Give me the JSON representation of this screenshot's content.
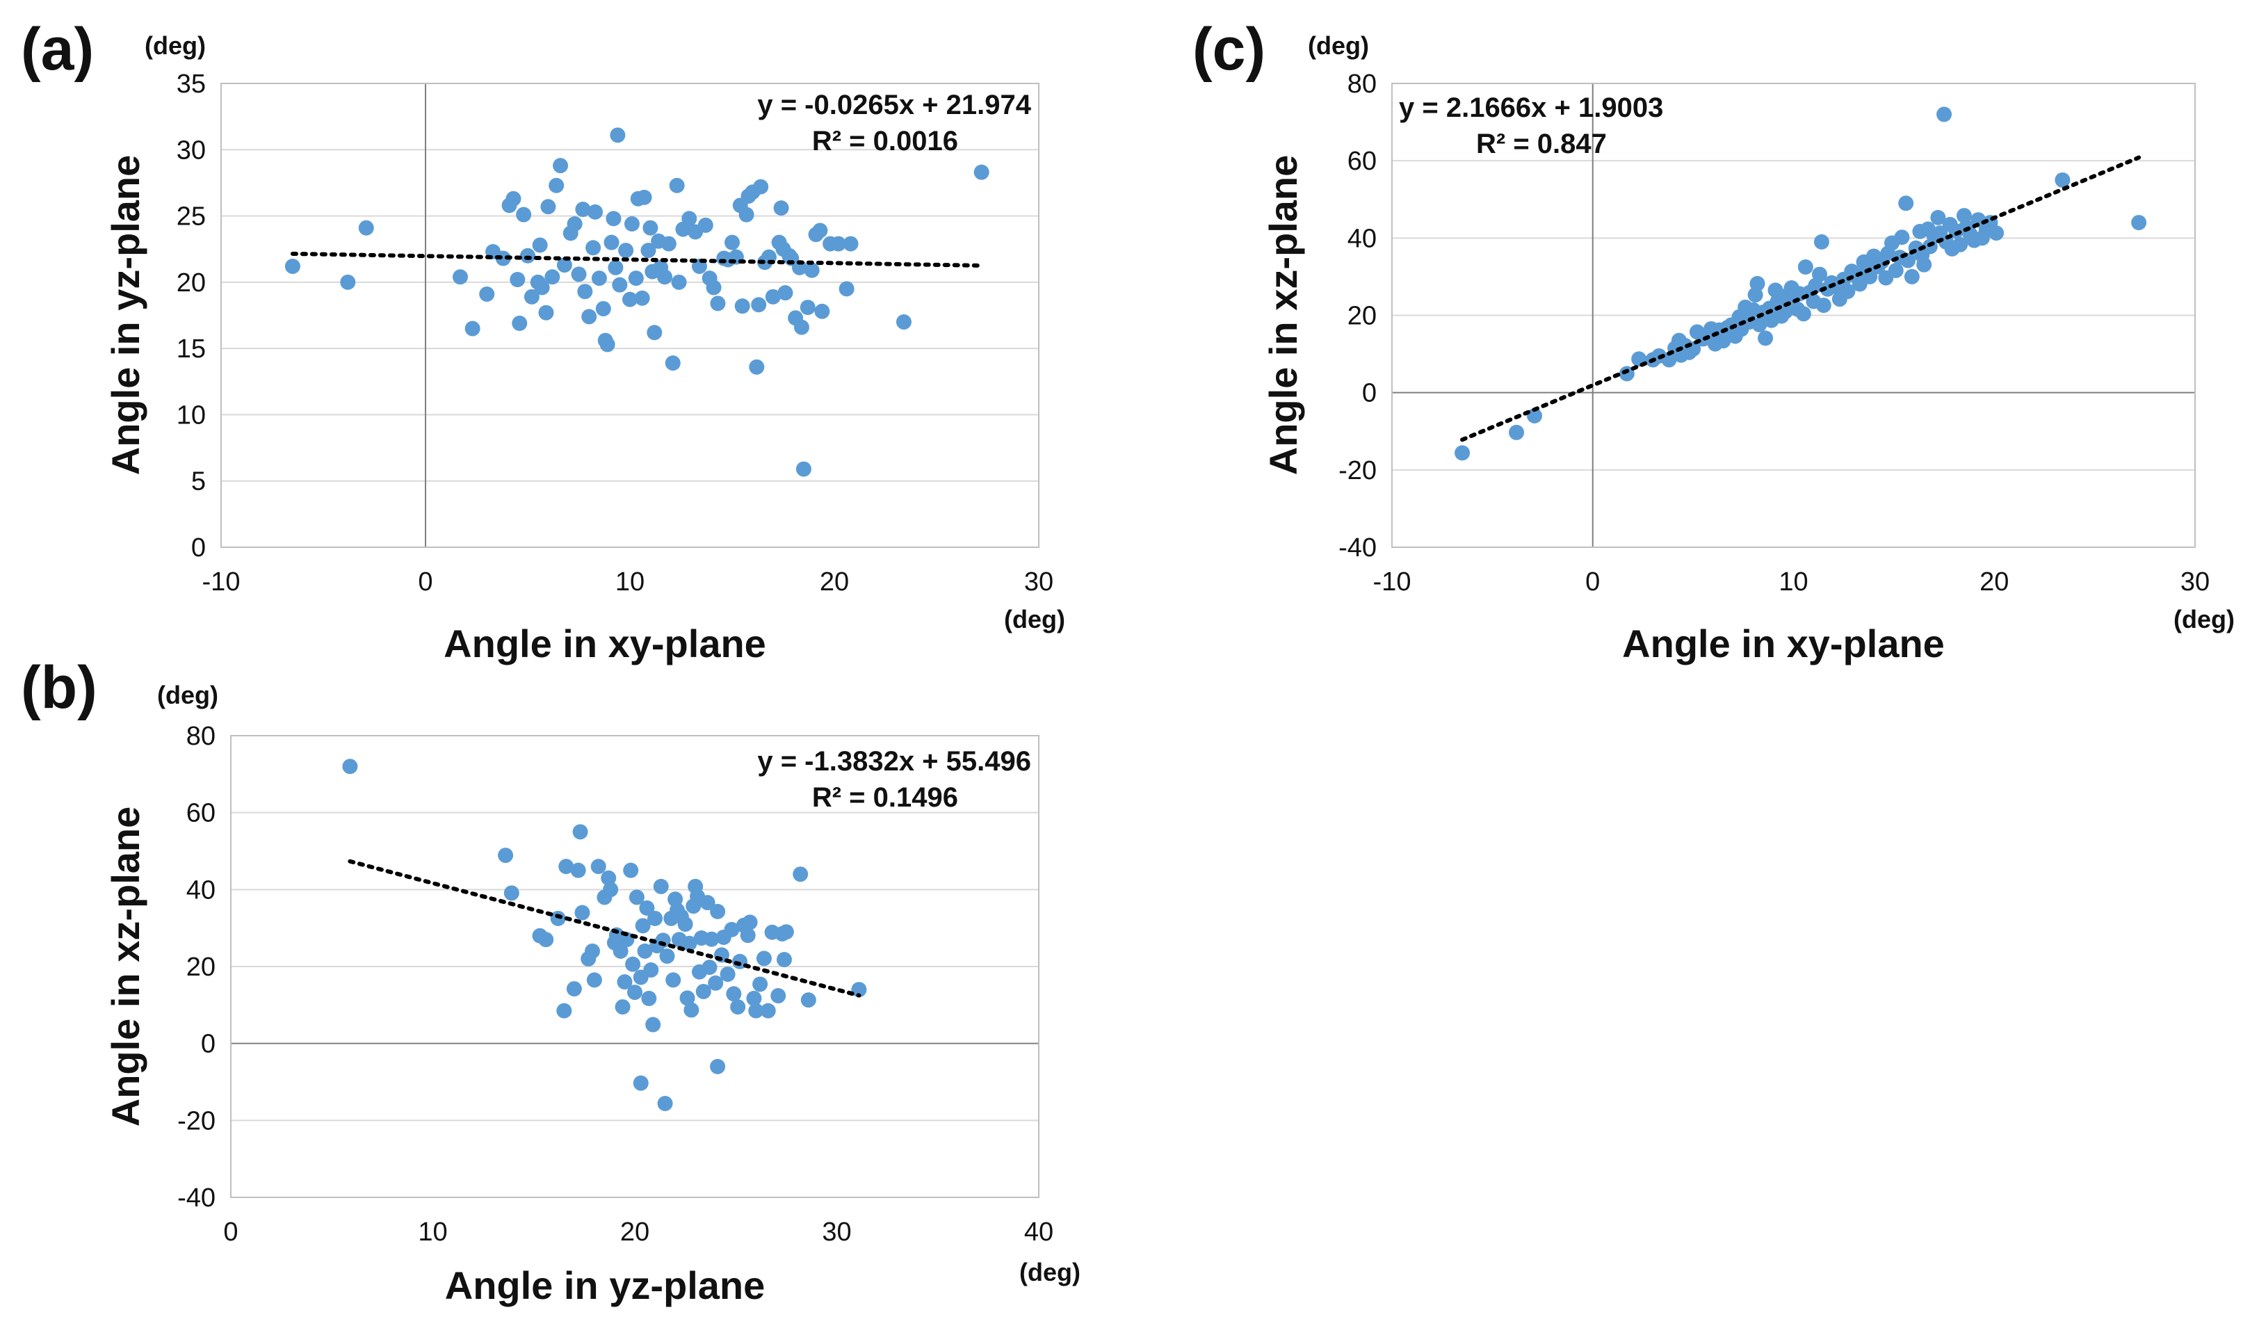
{
  "colors": {
    "marker": "#5b9bd5",
    "grid": "#d9d9d9",
    "zero_line": "#7f7f7f",
    "frame": "#bfbfbf",
    "trend": "#000000"
  },
  "chart_data": [
    {
      "id": "a",
      "panel_label": "(a)",
      "type": "scatter",
      "xlabel": "Angle in xy-plane",
      "ylabel": "Angle in yz-plane",
      "x_unit": "(deg)",
      "y_unit": "(deg)",
      "xlim": [
        -10,
        30
      ],
      "ylim": [
        0,
        35
      ],
      "xticks": [
        -10,
        0,
        10,
        20,
        30
      ],
      "yticks": [
        0,
        5,
        10,
        15,
        20,
        25,
        30,
        35
      ],
      "grid": true,
      "trendline": {
        "equation": "y = -0.0265x + 21.974",
        "r2": "R² = 0.0016",
        "slope": -0.0265,
        "intercept": 21.974,
        "x_range": [
          -6.5,
          27.2
        ]
      },
      "points": [
        [
          -6.5,
          21.2
        ],
        [
          -3.8,
          20.0
        ],
        [
          -2.9,
          24.1
        ],
        [
          1.7,
          20.4
        ],
        [
          2.3,
          16.5
        ],
        [
          3.0,
          19.1
        ],
        [
          3.3,
          22.3
        ],
        [
          3.8,
          21.8
        ],
        [
          4.1,
          25.8
        ],
        [
          4.3,
          26.3
        ],
        [
          4.5,
          20.2
        ],
        [
          4.6,
          16.9
        ],
        [
          4.8,
          25.1
        ],
        [
          5.0,
          22.0
        ],
        [
          5.2,
          18.9
        ],
        [
          5.5,
          20.0
        ],
        [
          5.6,
          22.8
        ],
        [
          5.7,
          19.6
        ],
        [
          5.9,
          17.7
        ],
        [
          6.0,
          25.7
        ],
        [
          6.2,
          20.4
        ],
        [
          6.4,
          27.3
        ],
        [
          6.6,
          28.8
        ],
        [
          6.8,
          21.3
        ],
        [
          7.1,
          23.7
        ],
        [
          7.3,
          24.4
        ],
        [
          7.5,
          20.6
        ],
        [
          7.7,
          25.5
        ],
        [
          7.8,
          19.3
        ],
        [
          8.0,
          17.4
        ],
        [
          8.2,
          22.6
        ],
        [
          8.3,
          25.3
        ],
        [
          8.5,
          20.3
        ],
        [
          8.7,
          18.0
        ],
        [
          8.8,
          15.6
        ],
        [
          8.9,
          15.3
        ],
        [
          9.1,
          23.0
        ],
        [
          9.2,
          24.8
        ],
        [
          9.3,
          21.1
        ],
        [
          9.4,
          31.1
        ],
        [
          9.5,
          19.8
        ],
        [
          9.8,
          22.4
        ],
        [
          10.0,
          18.7
        ],
        [
          10.1,
          24.4
        ],
        [
          10.3,
          20.3
        ],
        [
          10.4,
          26.3
        ],
        [
          10.6,
          18.8
        ],
        [
          10.7,
          26.4
        ],
        [
          10.9,
          22.4
        ],
        [
          11.0,
          24.1
        ],
        [
          11.1,
          20.8
        ],
        [
          11.2,
          16.2
        ],
        [
          11.4,
          23.1
        ],
        [
          11.5,
          21.1
        ],
        [
          11.7,
          20.4
        ],
        [
          11.9,
          22.9
        ],
        [
          12.1,
          13.9
        ],
        [
          12.3,
          27.3
        ],
        [
          12.4,
          20.0
        ],
        [
          12.6,
          24.0
        ],
        [
          12.9,
          24.8
        ],
        [
          13.2,
          23.8
        ],
        [
          13.4,
          21.2
        ],
        [
          13.7,
          24.3
        ],
        [
          13.9,
          20.3
        ],
        [
          14.1,
          19.6
        ],
        [
          14.3,
          18.4
        ],
        [
          14.6,
          21.8
        ],
        [
          14.8,
          21.7
        ],
        [
          15.0,
          23.0
        ],
        [
          15.2,
          21.9
        ],
        [
          15.4,
          25.8
        ],
        [
          15.5,
          18.2
        ],
        [
          15.7,
          25.1
        ],
        [
          15.8,
          26.5
        ],
        [
          16.0,
          26.8
        ],
        [
          16.2,
          13.6
        ],
        [
          16.3,
          18.3
        ],
        [
          16.4,
          27.2
        ],
        [
          16.6,
          21.5
        ],
        [
          16.8,
          21.9
        ],
        [
          17.0,
          18.9
        ],
        [
          17.3,
          23.0
        ],
        [
          17.4,
          25.6
        ],
        [
          17.5,
          22.5
        ],
        [
          17.6,
          19.2
        ],
        [
          17.8,
          22.0
        ],
        [
          17.9,
          21.8
        ],
        [
          18.1,
          17.3
        ],
        [
          18.3,
          21.1
        ],
        [
          18.4,
          16.6
        ],
        [
          18.5,
          5.9
        ],
        [
          18.7,
          18.1
        ],
        [
          18.9,
          20.9
        ],
        [
          19.1,
          23.6
        ],
        [
          19.3,
          23.9
        ],
        [
          19.4,
          17.8
        ],
        [
          19.8,
          22.9
        ],
        [
          20.2,
          22.9
        ],
        [
          20.6,
          19.5
        ],
        [
          20.8,
          22.9
        ],
        [
          23.4,
          17.0
        ],
        [
          27.2,
          28.3
        ]
      ]
    },
    {
      "id": "b",
      "panel_label": "(b)",
      "type": "scatter",
      "xlabel": "Angle in yz-plane",
      "ylabel": "Angle in xz-plane",
      "x_unit": "(deg)",
      "y_unit": "(deg)",
      "xlim": [
        0,
        40
      ],
      "ylim": [
        -40,
        80
      ],
      "xticks": [
        0,
        10,
        20,
        30,
        40
      ],
      "yticks": [
        -40,
        -20,
        0,
        20,
        40,
        60,
        80
      ],
      "grid": true,
      "trendline": {
        "equation": "y = -1.3832x + 55.496",
        "r2": "R² = 0.1496",
        "slope": -1.3832,
        "intercept": 55.496,
        "x_range": [
          5.9,
          31.1
        ]
      },
      "points": [
        [
          5.9,
          72
        ],
        [
          13.6,
          48.9
        ],
        [
          13.9,
          39.1
        ],
        [
          15.3,
          28
        ],
        [
          15.6,
          27
        ],
        [
          16.2,
          32.5
        ],
        [
          16.5,
          8.5
        ],
        [
          16.6,
          46
        ],
        [
          17.0,
          14.2
        ],
        [
          17.2,
          45
        ],
        [
          17.3,
          55
        ],
        [
          17.4,
          34
        ],
        [
          17.7,
          22
        ],
        [
          17.9,
          24
        ],
        [
          18.0,
          16.5
        ],
        [
          18.2,
          46
        ],
        [
          18.5,
          38
        ],
        [
          18.7,
          43
        ],
        [
          18.8,
          40
        ],
        [
          19.0,
          26.2
        ],
        [
          19.1,
          28.2
        ],
        [
          19.3,
          24
        ],
        [
          19.4,
          9.5
        ],
        [
          19.5,
          16
        ],
        [
          19.6,
          27
        ],
        [
          19.8,
          45
        ],
        [
          19.9,
          20.6
        ],
        [
          20.0,
          13.3
        ],
        [
          20.1,
          38
        ],
        [
          20.3,
          17.2
        ],
        [
          20.3,
          -10.3
        ],
        [
          20.4,
          30.6
        ],
        [
          20.5,
          24
        ],
        [
          20.6,
          35.2
        ],
        [
          20.7,
          11.7
        ],
        [
          20.8,
          19.1
        ],
        [
          20.9,
          4.9
        ],
        [
          21.0,
          32.5
        ],
        [
          21.1,
          25.4
        ],
        [
          21.3,
          40.8
        ],
        [
          21.4,
          26.8
        ],
        [
          21.5,
          -15.6
        ],
        [
          21.6,
          22.7
        ],
        [
          21.8,
          32.5
        ],
        [
          21.9,
          16.5
        ],
        [
          22.0,
          37.5
        ],
        [
          22.1,
          34.6
        ],
        [
          22.2,
          27
        ],
        [
          22.3,
          33
        ],
        [
          22.5,
          31
        ],
        [
          22.6,
          11.8
        ],
        [
          22.7,
          26
        ],
        [
          22.8,
          8.7
        ],
        [
          22.9,
          35.7
        ],
        [
          23.0,
          40.8
        ],
        [
          23.1,
          38.2
        ],
        [
          23.2,
          18.6
        ],
        [
          23.3,
          27.4
        ],
        [
          23.4,
          13.5
        ],
        [
          23.6,
          36.6
        ],
        [
          23.7,
          19.8
        ],
        [
          23.8,
          27.1
        ],
        [
          24.0,
          15.7
        ],
        [
          24.1,
          34.3
        ],
        [
          24.1,
          -6
        ],
        [
          24.3,
          23
        ],
        [
          24.4,
          27.6
        ],
        [
          24.6,
          18
        ],
        [
          24.8,
          29.6
        ],
        [
          24.9,
          12.9
        ],
        [
          25.1,
          9.5
        ],
        [
          25.2,
          21.3
        ],
        [
          25.4,
          30.7
        ],
        [
          25.6,
          28.1
        ],
        [
          25.7,
          31.5
        ],
        [
          25.9,
          11.7
        ],
        [
          26.0,
          8.5
        ],
        [
          26.2,
          15.4
        ],
        [
          26.4,
          22.1
        ],
        [
          26.6,
          8.5
        ],
        [
          26.8,
          28.9
        ],
        [
          27.1,
          12.4
        ],
        [
          27.3,
          28.5
        ],
        [
          27.4,
          21.8
        ],
        [
          27.5,
          29
        ],
        [
          28.2,
          44
        ],
        [
          28.6,
          11.3
        ],
        [
          31.1,
          14
        ]
      ]
    },
    {
      "id": "c",
      "panel_label": "(c)",
      "type": "scatter",
      "xlabel": "Angle in xy-plane",
      "ylabel": "Angle in xz-plane",
      "x_unit": "(deg)",
      "y_unit": "(deg)",
      "xlim": [
        -10,
        30
      ],
      "ylim": [
        -40,
        80
      ],
      "xticks": [
        -10,
        0,
        10,
        20,
        30
      ],
      "yticks": [
        -40,
        -20,
        0,
        20,
        40,
        60,
        80
      ],
      "grid": true,
      "trendline": {
        "equation": "y = 2.1666x + 1.9003",
        "r2": "R² = 0.847",
        "slope": 2.1666,
        "intercept": 1.9003,
        "x_range": [
          -6.5,
          27.2
        ]
      },
      "points": [
        [
          -6.5,
          -15.6
        ],
        [
          -3.8,
          -10.3
        ],
        [
          -2.9,
          -6
        ],
        [
          1.7,
          4.9
        ],
        [
          2.3,
          8.7
        ],
        [
          3.0,
          8.5
        ],
        [
          3.3,
          9.5
        ],
        [
          3.8,
          8.5
        ],
        [
          4.1,
          11.5
        ],
        [
          4.3,
          13.5
        ],
        [
          4.4,
          9.7
        ],
        [
          4.6,
          12.2
        ],
        [
          4.8,
          10.4
        ],
        [
          5.0,
          11.3
        ],
        [
          5.2,
          15.7
        ],
        [
          5.5,
          13.9
        ],
        [
          5.7,
          14.9
        ],
        [
          5.9,
          16.5
        ],
        [
          6.1,
          12.6
        ],
        [
          6.3,
          16.2
        ],
        [
          6.5,
          13.4
        ],
        [
          6.7,
          16.8
        ],
        [
          6.9,
          17.5
        ],
        [
          7.1,
          14.6
        ],
        [
          7.3,
          19.6
        ],
        [
          7.4,
          16.4
        ],
        [
          7.6,
          22.1
        ],
        [
          7.8,
          18.3
        ],
        [
          8.0,
          21.4
        ],
        [
          8.1,
          25.3
        ],
        [
          8.2,
          28.2
        ],
        [
          8.3,
          17.6
        ],
        [
          8.5,
          20.8
        ],
        [
          8.6,
          14.1
        ],
        [
          8.8,
          21.8
        ],
        [
          8.9,
          18.7
        ],
        [
          9.1,
          26.5
        ],
        [
          9.2,
          23.5
        ],
        [
          9.4,
          19.8
        ],
        [
          9.5,
          24.9
        ],
        [
          9.6,
          21
        ],
        [
          9.8,
          22.5
        ],
        [
          9.9,
          27.1
        ],
        [
          10.0,
          24.8
        ],
        [
          10.2,
          21.6
        ],
        [
          10.3,
          25.6
        ],
        [
          10.5,
          20.4
        ],
        [
          10.6,
          32.5
        ],
        [
          10.8,
          25.9
        ],
        [
          11.0,
          23.6
        ],
        [
          11.1,
          27.7
        ],
        [
          11.3,
          30.6
        ],
        [
          11.4,
          39
        ],
        [
          11.5,
          22.6
        ],
        [
          11.7,
          26.8
        ],
        [
          11.9,
          28.4
        ],
        [
          12.1,
          27.5
        ],
        [
          12.3,
          24.2
        ],
        [
          12.5,
          29.3
        ],
        [
          12.7,
          26.2
        ],
        [
          12.9,
          31.4
        ],
        [
          13.1,
          30.2
        ],
        [
          13.3,
          28.1
        ],
        [
          13.5,
          33.8
        ],
        [
          13.6,
          31.5
        ],
        [
          13.8,
          30
        ],
        [
          14.0,
          35.3
        ],
        [
          14.2,
          32.6
        ],
        [
          14.4,
          33.9
        ],
        [
          14.6,
          29.7
        ],
        [
          14.7,
          36
        ],
        [
          14.9,
          38.7
        ],
        [
          15.1,
          31.6
        ],
        [
          15.3,
          35
        ],
        [
          15.4,
          40.2
        ],
        [
          15.6,
          49
        ],
        [
          15.7,
          34.2
        ],
        [
          15.9,
          30
        ],
        [
          16.1,
          37.4
        ],
        [
          16.3,
          41.7
        ],
        [
          16.4,
          35.6
        ],
        [
          16.5,
          33.1
        ],
        [
          16.7,
          42.3
        ],
        [
          16.8,
          37.8
        ],
        [
          17.0,
          40.6
        ],
        [
          17.2,
          45.3
        ],
        [
          17.3,
          41.3
        ],
        [
          17.5,
          72
        ],
        [
          17.6,
          39
        ],
        [
          17.8,
          43.5
        ],
        [
          17.9,
          37.2
        ],
        [
          18.1,
          41.8
        ],
        [
          18.3,
          38.3
        ],
        [
          18.5,
          45.8
        ],
        [
          18.6,
          42.8
        ],
        [
          18.8,
          41
        ],
        [
          19.0,
          39.4
        ],
        [
          19.2,
          44.7
        ],
        [
          19.4,
          40
        ],
        [
          19.6,
          42.2
        ],
        [
          19.8,
          44
        ],
        [
          20.1,
          41.3
        ],
        [
          23.4,
          55
        ],
        [
          27.2,
          44
        ]
      ]
    }
  ]
}
